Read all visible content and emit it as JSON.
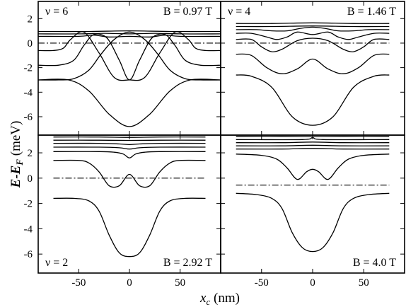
{
  "chart_data": {
    "type": "line",
    "x_axis": {
      "label_main": "x",
      "label_sub": "c",
      "label_unit": " (nm)",
      "range": [
        -90,
        90
      ],
      "ticks": [
        -50,
        0,
        50
      ],
      "tick_labels": [
        "-50",
        "0",
        "50"
      ]
    },
    "y_axis": {
      "label_main": "E-E",
      "label_sub": "F",
      "label_unit": " (meV)",
      "range": [
        -7.5,
        3.4
      ],
      "ticks": [
        -6,
        -4,
        -2,
        0,
        2
      ],
      "tick_labels": [
        "-6",
        "-4",
        "-2",
        "0",
        "2"
      ]
    },
    "panels": [
      {
        "id": "p1",
        "nu_label": "ν = 6",
        "b_label": "B = 0.97 T",
        "nu_pos": "top-left",
        "b_pos": "top-right",
        "fermi_level": 0,
        "fermi_x": [
          -90,
          90
        ],
        "series": [
          {
            "x": [
              -90,
              -70,
              -55,
              -40,
              -28,
              -15,
              0,
              15,
              28,
              40,
              55,
              70,
              90
            ],
            "y": [
              -3.0,
              -3.0,
              -2.9,
              -2.2,
              -0.9,
              0.3,
              0.9,
              0.3,
              -0.9,
              -2.2,
              -2.9,
              -3.0,
              -3.0
            ]
          },
          {
            "x": [
              -90,
              -60,
              -40,
              -20,
              0,
              20,
              40,
              60,
              90
            ],
            "y": [
              -3.0,
              -3.0,
              -3.9,
              -5.8,
              -6.8,
              -5.8,
              -3.9,
              -3.0,
              -3.0
            ]
          },
          {
            "x": [
              -90,
              -70,
              -55,
              -45,
              -35,
              -22,
              -10,
              0,
              10,
              22,
              35,
              45,
              55,
              70,
              90
            ],
            "y": [
              -1.8,
              -1.8,
              -1.4,
              -0.2,
              0.7,
              0.4,
              -1.4,
              -3.0,
              -1.4,
              0.4,
              0.7,
              -0.2,
              -1.4,
              -1.8,
              -1.8
            ]
          },
          {
            "x": [
              -90,
              -75,
              -65,
              -58,
              -45,
              -30,
              -15,
              0,
              15,
              30,
              45,
              58,
              65,
              75,
              90
            ],
            "y": [
              -0.6,
              -0.6,
              -0.4,
              0.3,
              0.9,
              -0.8,
              -2.8,
              -3.0,
              -2.8,
              -0.8,
              0.9,
              0.3,
              -0.4,
              -0.6,
              -0.6
            ]
          },
          {
            "x": [
              -90,
              -50,
              -35,
              -20,
              0,
              20,
              35,
              50,
              90
            ],
            "y": [
              0.55,
              0.55,
              0.65,
              0.5,
              0.55,
              0.5,
              0.65,
              0.55,
              0.55
            ]
          },
          {
            "x": [
              -90,
              -50,
              -25,
              0,
              25,
              50,
              90
            ],
            "y": [
              0.75,
              0.75,
              0.8,
              0.75,
              0.8,
              0.75,
              0.75
            ]
          },
          {
            "x": [
              -90,
              -40,
              0,
              40,
              90
            ],
            "y": [
              0.95,
              0.95,
              1.0,
              0.95,
              0.95
            ]
          }
        ]
      },
      {
        "id": "p2",
        "nu_label": "ν = 4",
        "b_label": "B = 1.46 T",
        "nu_pos": "top-left",
        "b_pos": "top-right",
        "fermi_level": 0,
        "fermi_x": [
          -75,
          75
        ],
        "series": [
          {
            "x": [
              -75,
              -60,
              -40,
              -20,
              0,
              20,
              40,
              60,
              75
            ],
            "y": [
              -2.6,
              -2.7,
              -3.6,
              -6.0,
              -6.7,
              -6.0,
              -3.6,
              -2.7,
              -2.6
            ]
          },
          {
            "x": [
              -75,
              -60,
              -45,
              -30,
              -15,
              0,
              15,
              30,
              45,
              60,
              75
            ],
            "y": [
              -0.9,
              -1.0,
              -2.0,
              -2.5,
              -2.1,
              -1.3,
              -2.1,
              -2.5,
              -2.0,
              -1.0,
              -0.9
            ]
          },
          {
            "x": [
              -75,
              -60,
              -50,
              -40,
              -30,
              -15,
              0,
              15,
              30,
              40,
              50,
              60,
              75
            ],
            "y": [
              0.3,
              0.3,
              -0.3,
              -0.7,
              -0.5,
              0.2,
              0.4,
              0.2,
              -0.5,
              -0.7,
              -0.3,
              0.3,
              0.3
            ]
          },
          {
            "x": [
              -75,
              -60,
              -45,
              -35,
              -25,
              -15,
              0,
              15,
              25,
              35,
              45,
              60,
              75
            ],
            "y": [
              0.8,
              0.8,
              0.5,
              0.3,
              0.5,
              0.9,
              0.7,
              0.9,
              0.5,
              0.3,
              0.5,
              0.8,
              0.8
            ]
          },
          {
            "x": [
              -75,
              -55,
              -40,
              -25,
              -12,
              0,
              12,
              25,
              40,
              55,
              75
            ],
            "y": [
              1.1,
              1.1,
              1.0,
              1.0,
              1.2,
              1.3,
              1.2,
              1.0,
              1.0,
              1.1,
              1.1
            ]
          },
          {
            "x": [
              -75,
              -40,
              0,
              40,
              75
            ],
            "y": [
              1.35,
              1.35,
              1.4,
              1.35,
              1.35
            ]
          },
          {
            "x": [
              -75,
              -40,
              0,
              40,
              75
            ],
            "y": [
              1.6,
              1.6,
              1.65,
              1.6,
              1.6
            ]
          }
        ]
      },
      {
        "id": "p3",
        "nu_label": "ν = 2",
        "b_label": "B = 2.92 T",
        "nu_pos": "bottom-left",
        "b_pos": "bottom-right",
        "fermi_level": 0,
        "fermi_x": [
          -75,
          75
        ],
        "series": [
          {
            "x": [
              -75,
              -55,
              -40,
              -30,
              -20,
              -10,
              0,
              10,
              20,
              30,
              40,
              55,
              75
            ],
            "y": [
              -1.6,
              -1.6,
              -1.8,
              -2.6,
              -4.5,
              -5.9,
              -6.2,
              -5.9,
              -4.5,
              -2.6,
              -1.8,
              -1.6,
              -1.6
            ]
          },
          {
            "x": [
              -75,
              -50,
              -40,
              -30,
              -20,
              -10,
              0,
              10,
              20,
              30,
              40,
              50,
              75
            ],
            "y": [
              1.4,
              1.4,
              1.2,
              0.5,
              -0.6,
              -0.6,
              0.3,
              -0.6,
              -0.6,
              0.5,
              1.2,
              1.4,
              1.4
            ]
          },
          {
            "x": [
              -75,
              -30,
              -15,
              -6,
              0,
              6,
              15,
              30,
              75
            ],
            "y": [
              2.1,
              2.1,
              2.05,
              1.9,
              1.6,
              1.9,
              2.05,
              2.1,
              2.1
            ]
          },
          {
            "x": [
              -75,
              -30,
              -10,
              0,
              10,
              30,
              75
            ],
            "y": [
              2.45,
              2.45,
              2.4,
              2.3,
              2.4,
              2.45,
              2.45
            ]
          },
          {
            "x": [
              -75,
              -30,
              -10,
              0,
              10,
              30,
              75
            ],
            "y": [
              2.75,
              2.75,
              2.7,
              2.65,
              2.7,
              2.75,
              2.75
            ]
          },
          {
            "x": [
              -75,
              -30,
              0,
              30,
              75
            ],
            "y": [
              3.0,
              3.0,
              2.98,
              3.0,
              3.0
            ]
          },
          {
            "x": [
              -75,
              -30,
              0,
              30,
              75
            ],
            "y": [
              3.25,
              3.25,
              3.22,
              3.25,
              3.25
            ]
          }
        ]
      },
      {
        "id": "p4",
        "nu_label": "",
        "b_label": "B = 4.0 T",
        "nu_pos": "bottom-left",
        "b_pos": "bottom-right",
        "fermi_level": -0.55,
        "fermi_x": [
          -75,
          75
        ],
        "series": [
          {
            "x": [
              -75,
              -55,
              -40,
              -30,
              -20,
              -10,
              0,
              10,
              20,
              30,
              40,
              55,
              75
            ],
            "y": [
              -1.2,
              -1.3,
              -1.6,
              -2.4,
              -4.3,
              -5.5,
              -5.8,
              -5.5,
              -4.3,
              -2.4,
              -1.6,
              -1.3,
              -1.2
            ]
          },
          {
            "x": [
              -75,
              -50,
              -35,
              -25,
              -15,
              -6,
              0,
              6,
              15,
              25,
              35,
              50,
              75
            ],
            "y": [
              1.9,
              1.8,
              1.5,
              0.8,
              -0.1,
              0.5,
              0.7,
              0.5,
              -0.1,
              0.8,
              1.5,
              1.8,
              1.9
            ]
          },
          {
            "x": [
              -75,
              -30,
              0,
              30,
              75
            ],
            "y": [
              2.3,
              2.3,
              2.35,
              2.3,
              2.3
            ]
          },
          {
            "x": [
              -75,
              -30,
              0,
              30,
              75
            ],
            "y": [
              2.55,
              2.55,
              2.6,
              2.55,
              2.55
            ]
          },
          {
            "x": [
              -75,
              -30,
              0,
              30,
              75
            ],
            "y": [
              2.8,
              2.8,
              2.85,
              2.8,
              2.8
            ]
          },
          {
            "x": [
              -75,
              -10,
              0,
              10,
              75
            ],
            "y": [
              3.05,
              3.05,
              3.2,
              3.05,
              3.05
            ]
          },
          {
            "x": [
              -75,
              -30,
              0,
              30,
              75
            ],
            "y": [
              3.3,
              3.3,
              3.28,
              3.3,
              3.3
            ]
          }
        ]
      }
    ]
  }
}
